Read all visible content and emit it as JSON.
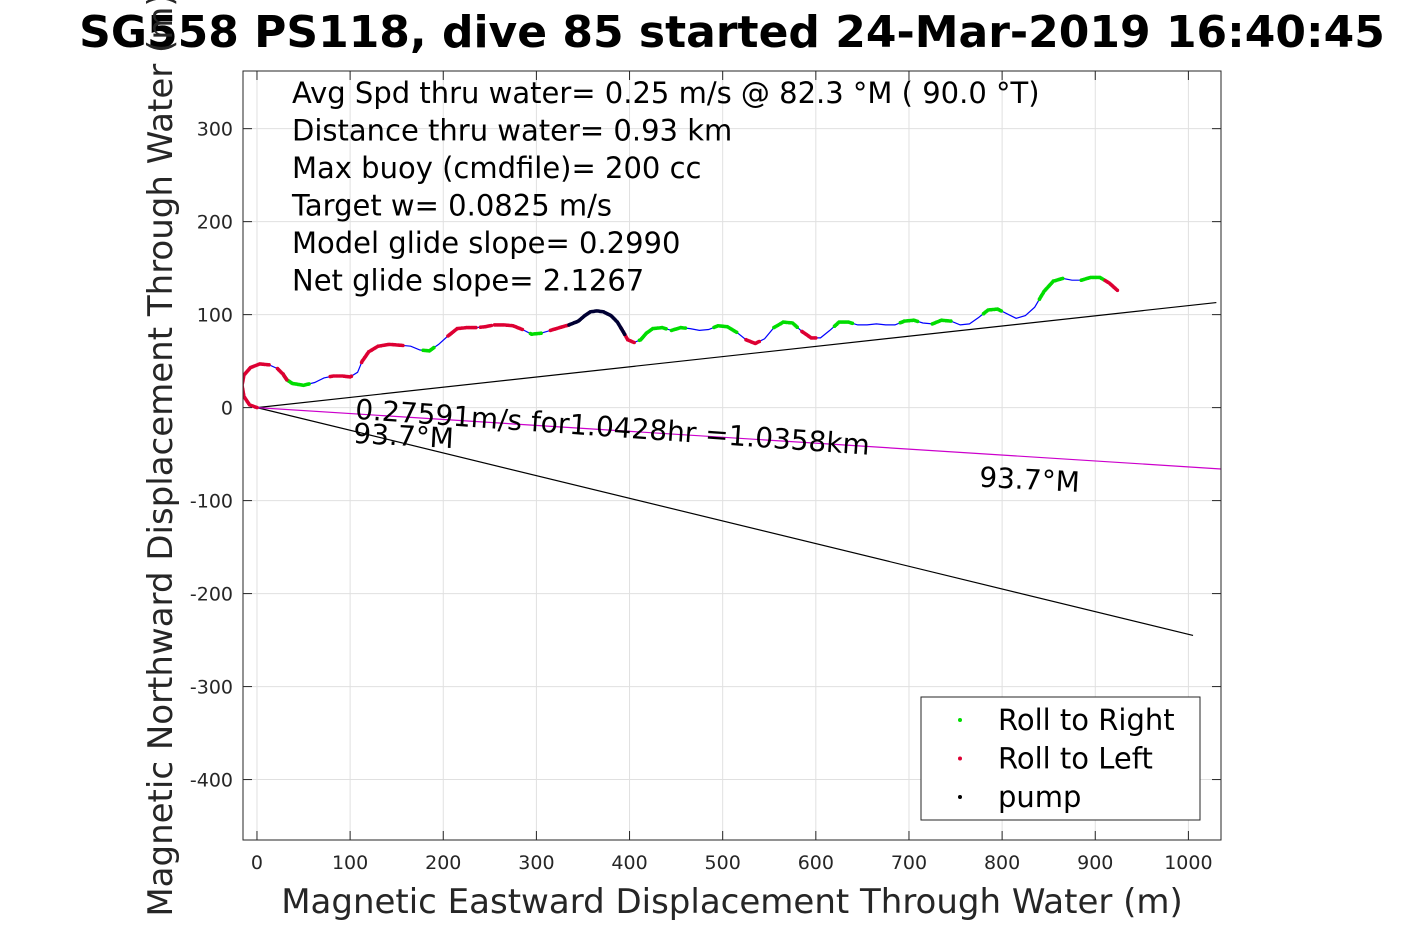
{
  "chart_data": {
    "type": "scatter",
    "title": "SG558 PS118, dive 85 started 24-Mar-2019 16:40:45",
    "xlabel": "Magnetic Eastward Displacement Through Water (m)",
    "ylabel": "Magnetic Northward Displacement Through Water (m)",
    "xlim": [
      -15,
      1035
    ],
    "ylim": [
      -465,
      362
    ],
    "xticks": [
      "0",
      "100",
      "200",
      "300",
      "400",
      "500",
      "600",
      "700",
      "800",
      "900",
      "1000"
    ],
    "yticks": [
      "300",
      "200",
      "100",
      "0",
      "-100",
      "-200",
      "-300",
      "-400"
    ],
    "grid": true,
    "legend_position": "bottom-right",
    "colors": {
      "roll_right": "#00dd00",
      "roll_left": "#dd0033",
      "pump": "#000033",
      "track": "#0000ff",
      "reference": "#000000",
      "current": "#cc00cc"
    },
    "legend": [
      {
        "name": "Roll to Right",
        "color": "#00dd00"
      },
      {
        "name": "Roll to Left",
        "color": "#dd0033"
      },
      {
        "name": "pump",
        "color": "#000000"
      }
    ],
    "info_lines": [
      "Avg Spd thru water=  0.25 m/s @  82.3 °M ( 90.0 °T)",
      "Distance thru water=  0.93 km",
      "Max buoy (cmdfile)= 200 cc",
      "Target w= 0.0825 m/s",
      "Model glide slope= 0.2990",
      "Net glide slope= 2.1267"
    ],
    "annotations": [
      {
        "text": "0.27591m/s for1.0428hr =1.0358km",
        "x": 105,
        "y": -12,
        "rotation": 4
      },
      {
        "text": "93.7°M",
        "x": 103,
        "y": -38,
        "rotation": 3
      },
      {
        "text": "93.7°M",
        "x": 775,
        "y": -85,
        "rotation": 3
      }
    ],
    "reference_lines": [
      {
        "name": "upper",
        "x": [
          0,
          1030
        ],
        "y": [
          0,
          113
        ]
      },
      {
        "name": "lower",
        "x": [
          0,
          1005
        ],
        "y": [
          0,
          -245
        ]
      },
      {
        "name": "current",
        "x": [
          0,
          1035
        ],
        "y": [
          0,
          -66
        ]
      }
    ],
    "track": [
      [
        0,
        0
      ],
      [
        -8,
        3
      ],
      [
        -14,
        12
      ],
      [
        -16,
        24
      ],
      [
        -14,
        35
      ],
      [
        -7,
        43
      ],
      [
        3,
        47
      ],
      [
        13,
        46
      ],
      [
        22,
        42
      ],
      [
        28,
        36
      ],
      [
        32,
        30
      ],
      [
        38,
        26
      ],
      [
        50,
        24
      ],
      [
        62,
        27
      ],
      [
        72,
        32
      ],
      [
        82,
        34
      ],
      [
        92,
        34
      ],
      [
        100,
        33
      ],
      [
        108,
        38
      ],
      [
        113,
        50
      ],
      [
        120,
        60
      ],
      [
        130,
        66
      ],
      [
        142,
        68
      ],
      [
        155,
        67
      ],
      [
        165,
        66
      ],
      [
        175,
        62
      ],
      [
        185,
        61
      ],
      [
        195,
        68
      ],
      [
        205,
        77
      ],
      [
        215,
        85
      ],
      [
        225,
        86
      ],
      [
        235,
        86
      ],
      [
        245,
        87
      ],
      [
        255,
        89
      ],
      [
        265,
        89
      ],
      [
        275,
        88
      ],
      [
        285,
        84
      ],
      [
        295,
        79
      ],
      [
        305,
        80
      ],
      [
        315,
        83
      ],
      [
        325,
        86
      ],
      [
        335,
        89
      ],
      [
        345,
        93
      ],
      [
        352,
        99
      ],
      [
        358,
        103
      ],
      [
        365,
        104
      ],
      [
        372,
        103
      ],
      [
        380,
        99
      ],
      [
        387,
        92
      ],
      [
        393,
        82
      ],
      [
        398,
        73
      ],
      [
        405,
        70
      ],
      [
        412,
        73
      ],
      [
        418,
        80
      ],
      [
        425,
        85
      ],
      [
        435,
        86
      ],
      [
        445,
        83
      ],
      [
        455,
        86
      ],
      [
        465,
        85
      ],
      [
        475,
        83
      ],
      [
        485,
        84
      ],
      [
        495,
        88
      ],
      [
        505,
        87
      ],
      [
        515,
        81
      ],
      [
        525,
        73
      ],
      [
        535,
        69
      ],
      [
        545,
        74
      ],
      [
        555,
        86
      ],
      [
        565,
        92
      ],
      [
        575,
        91
      ],
      [
        585,
        82
      ],
      [
        595,
        75
      ],
      [
        605,
        75
      ],
      [
        615,
        83
      ],
      [
        625,
        92
      ],
      [
        635,
        92
      ],
      [
        645,
        89
      ],
      [
        655,
        89
      ],
      [
        665,
        90
      ],
      [
        675,
        89
      ],
      [
        685,
        89
      ],
      [
        695,
        93
      ],
      [
        705,
        94
      ],
      [
        715,
        91
      ],
      [
        725,
        90
      ],
      [
        735,
        94
      ],
      [
        745,
        93
      ],
      [
        755,
        89
      ],
      [
        765,
        90
      ],
      [
        775,
        97
      ],
      [
        785,
        105
      ],
      [
        795,
        106
      ],
      [
        805,
        101
      ],
      [
        815,
        96
      ],
      [
        825,
        99
      ],
      [
        835,
        108
      ],
      [
        845,
        125
      ],
      [
        855,
        136
      ],
      [
        865,
        139
      ],
      [
        875,
        137
      ],
      [
        885,
        137
      ],
      [
        895,
        140
      ],
      [
        905,
        140
      ],
      [
        915,
        134
      ],
      [
        925,
        125
      ]
    ],
    "roll_right_segments": [
      [
        28,
        57
      ],
      [
        178,
        190
      ],
      [
        293,
        305
      ],
      [
        410,
        440
      ],
      [
        445,
        460
      ],
      [
        490,
        515
      ],
      [
        555,
        580
      ],
      [
        620,
        640
      ],
      [
        690,
        710
      ],
      [
        725,
        745
      ],
      [
        780,
        800
      ],
      [
        840,
        865
      ],
      [
        885,
        910
      ]
    ],
    "roll_left_segments": [
      [
        -16,
        13
      ],
      [
        15,
        32
      ],
      [
        78,
        102
      ],
      [
        112,
        158
      ],
      [
        205,
        235
      ],
      [
        240,
        252
      ],
      [
        255,
        285
      ],
      [
        315,
        335
      ],
      [
        390,
        405
      ],
      [
        525,
        540
      ],
      [
        585,
        600
      ],
      [
        910,
        928
      ]
    ],
    "pump_segments": [
      [
        335,
        395
      ]
    ]
  }
}
